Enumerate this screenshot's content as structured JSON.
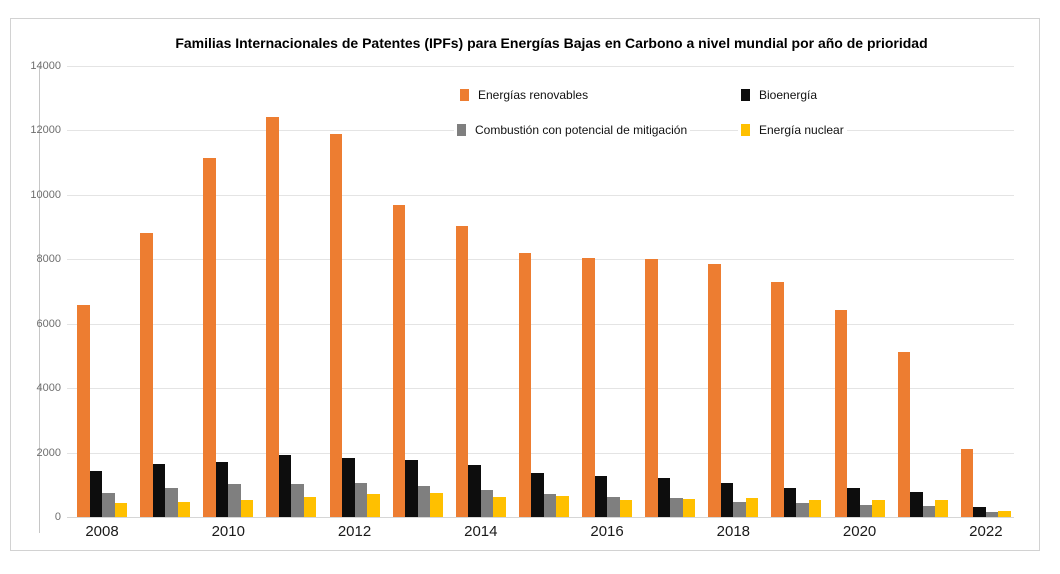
{
  "chart": {
    "title": "Familias Internacionales de Patentes (IPFs) para Energías Bajas en Carbono a nivel mundial por año de prioridad"
  },
  "chart_data": {
    "type": "bar",
    "title": "Familias Internacionales de Patentes (IPFs) para Energías Bajas en Carbono a nivel mundial por año de prioridad",
    "xlabel": "",
    "ylabel": "",
    "ylim": [
      0,
      14000
    ],
    "yticks": [
      0,
      2000,
      4000,
      6000,
      8000,
      10000,
      12000,
      14000
    ],
    "grid": true,
    "legend_position": "top-inside",
    "categories": [
      "2008",
      "2009",
      "2010",
      "2011",
      "2012",
      "2013",
      "2014",
      "2015",
      "2016",
      "2017",
      "2018",
      "2019",
      "2020",
      "2021",
      "2022"
    ],
    "x_tick_labels_shown": [
      "2008",
      "2010",
      "2012",
      "2014",
      "2016",
      "2018",
      "2020",
      "2022"
    ],
    "series": [
      {
        "name": "Energías renovables",
        "color": "#ED7D31",
        "values": [
          6580,
          8820,
          11150,
          12420,
          11890,
          9690,
          9030,
          8200,
          8040,
          8020,
          7850,
          7300,
          6440,
          5120,
          2100
        ]
      },
      {
        "name": "Bioenergía",
        "color": "#0D0D0D",
        "values": [
          1430,
          1650,
          1700,
          1910,
          1840,
          1770,
          1630,
          1370,
          1270,
          1200,
          1050,
          890,
          890,
          780,
          310
        ]
      },
      {
        "name": "Combustión con potencial de mitigación",
        "color": "#7F7F7F",
        "values": [
          760,
          900,
          1010,
          1020,
          1070,
          955,
          840,
          715,
          635,
          590,
          480,
          430,
          370,
          340,
          160
        ]
      },
      {
        "name": "Energía nuclear",
        "color": "#FFC000",
        "values": [
          430,
          460,
          520,
          610,
          700,
          730,
          620,
          660,
          530,
          560,
          590,
          540,
          530,
          520,
          200
        ]
      }
    ]
  }
}
